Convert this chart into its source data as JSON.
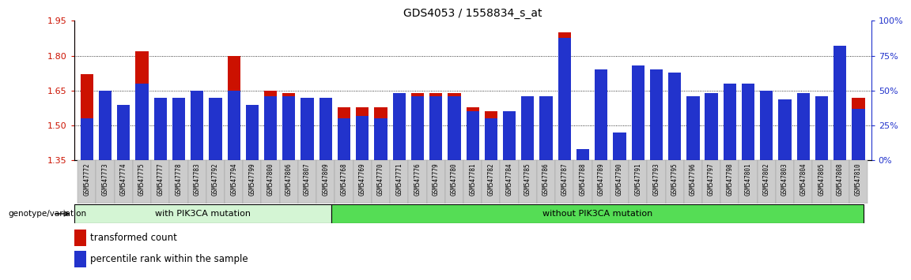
{
  "title": "GDS4053 / 1558834_s_at",
  "samples": [
    "GSM547772",
    "GSM547773",
    "GSM547774",
    "GSM547775",
    "GSM547777",
    "GSM547778",
    "GSM547783",
    "GSM547792",
    "GSM547794",
    "GSM547799",
    "GSM547800",
    "GSM547806",
    "GSM547807",
    "GSM547809",
    "GSM547768",
    "GSM547769",
    "GSM547770",
    "GSM547771",
    "GSM547776",
    "GSM547779",
    "GSM547780",
    "GSM547781",
    "GSM547782",
    "GSM547784",
    "GSM547785",
    "GSM547786",
    "GSM547787",
    "GSM547788",
    "GSM547789",
    "GSM547790",
    "GSM547791",
    "GSM547793",
    "GSM547795",
    "GSM547796",
    "GSM547797",
    "GSM547798",
    "GSM547801",
    "GSM547802",
    "GSM547803",
    "GSM547804",
    "GSM547805",
    "GSM547808",
    "GSM547810"
  ],
  "transformed_counts": [
    1.72,
    1.59,
    1.56,
    1.82,
    1.58,
    1.58,
    1.64,
    1.5,
    1.8,
    1.56,
    1.65,
    1.64,
    1.58,
    1.58,
    1.58,
    1.58,
    1.58,
    1.64,
    1.64,
    1.64,
    1.64,
    1.58,
    1.56,
    1.56,
    1.49,
    1.57,
    1.9,
    1.37,
    1.7,
    1.47,
    1.73,
    1.65,
    1.63,
    1.56,
    1.56,
    1.57,
    1.57,
    1.55,
    1.52,
    1.64,
    1.56,
    1.83,
    1.62
  ],
  "percentile_ranks": [
    30,
    50,
    40,
    55,
    45,
    45,
    50,
    45,
    50,
    40,
    46,
    46,
    45,
    45,
    30,
    32,
    30,
    48,
    46,
    46,
    46,
    35,
    30,
    35,
    46,
    46,
    88,
    8,
    65,
    20,
    68,
    65,
    63,
    46,
    48,
    55,
    55,
    50,
    44,
    48,
    46,
    82,
    37
  ],
  "group1_count": 14,
  "group1_label": "with PIK3CA mutation",
  "group2_label": "without PIK3CA mutation",
  "group1_color": "#d4f5d4",
  "group2_color": "#55dd55",
  "bar_color": "#cc1100",
  "percentile_color": "#2233cc",
  "ylim_left": [
    1.35,
    1.95
  ],
  "ylim_right": [
    0,
    100
  ],
  "yticks_left": [
    1.35,
    1.5,
    1.65,
    1.8,
    1.95
  ],
  "yticks_right": [
    0,
    25,
    50,
    75,
    100
  ],
  "grid_values": [
    1.5,
    1.65,
    1.8
  ],
  "legend_label1": "transformed count",
  "legend_label2": "percentile rank within the sample",
  "genotype_label": "genotype/variation",
  "bg_color": "#ffffff"
}
